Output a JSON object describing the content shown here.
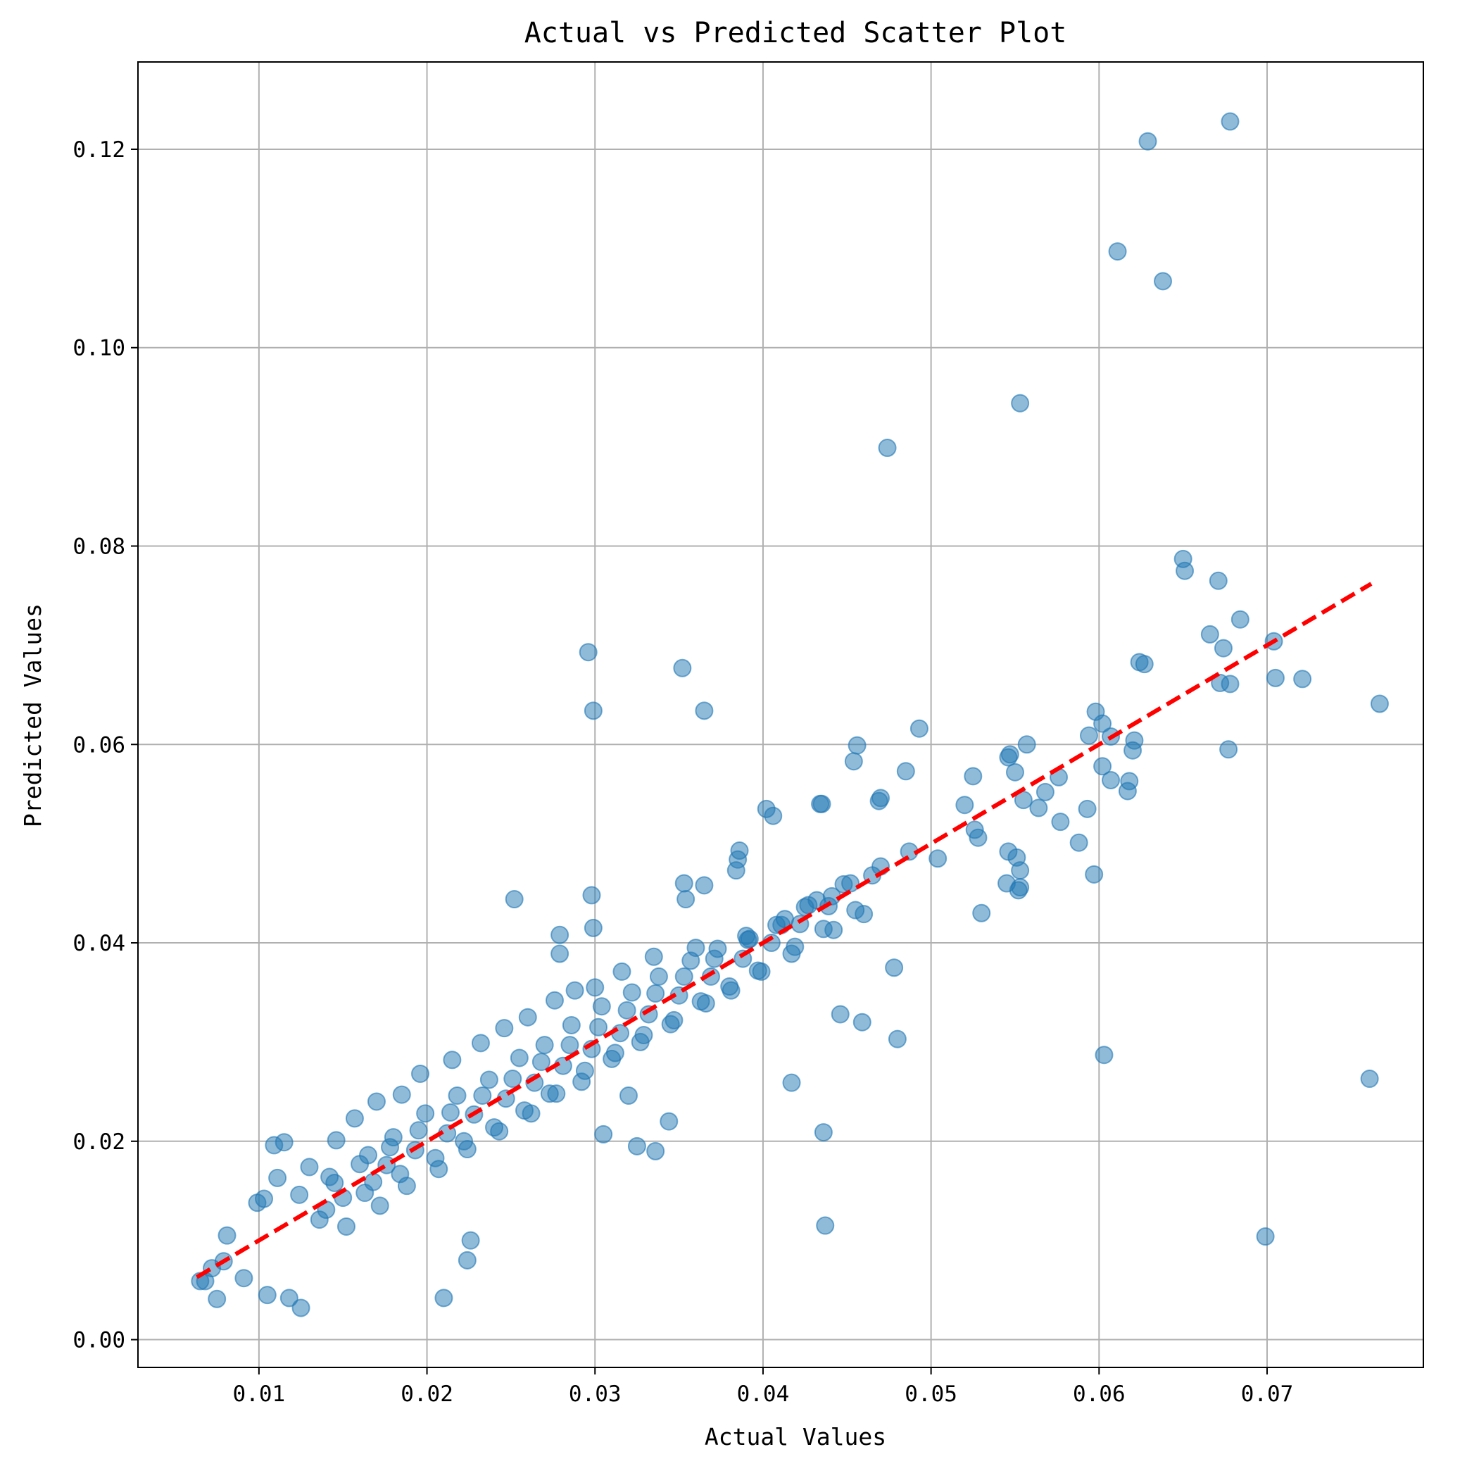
{
  "chart_data": {
    "type": "scatter",
    "title": "Actual vs Predicted Scatter Plot",
    "xlabel": "Actual Values",
    "ylabel": "Predicted Values",
    "xlim": [
      0.0028,
      0.0793
    ],
    "ylim": [
      -0.0028,
      0.1288
    ],
    "xticks": [
      0.01,
      0.02,
      0.03,
      0.04,
      0.05,
      0.06,
      0.07
    ],
    "xtick_labels": [
      "0.01",
      "0.02",
      "0.03",
      "0.04",
      "0.05",
      "0.06",
      "0.07"
    ],
    "yticks": [
      0.0,
      0.02,
      0.04,
      0.06,
      0.08,
      0.1,
      0.12
    ],
    "ytick_labels": [
      "0.00",
      "0.02",
      "0.04",
      "0.06",
      "0.08",
      "0.10",
      "0.12"
    ],
    "grid": true,
    "legend": "none",
    "colors": {
      "points": "#1f77b4",
      "reference_line": "#ff0000"
    },
    "reference_line": {
      "style": "dashed",
      "x": [
        0.0063,
        0.0762
      ],
      "y": [
        0.0063,
        0.0762
      ]
    },
    "points": {
      "x": [
        0.0629,
        0.0678,
        0.0611,
        0.0638,
        0.0553,
        0.0474,
        0.065,
        0.0651,
        0.0671,
        0.0684,
        0.0704,
        0.0705,
        0.0721,
        0.0767,
        0.0666,
        0.0674,
        0.0678,
        0.0672,
        0.0677,
        0.0624,
        0.0627,
        0.0598,
        0.0602,
        0.0607,
        0.0594,
        0.0621,
        0.062,
        0.0618,
        0.0602,
        0.0617,
        0.0607,
        0.0588,
        0.0597,
        0.0593,
        0.0577,
        0.0555,
        0.0564,
        0.0576,
        0.0568,
        0.055,
        0.0546,
        0.0547,
        0.0557,
        0.0525,
        0.0526,
        0.052,
        0.0528,
        0.0504,
        0.0545,
        0.0553,
        0.0552,
        0.0553,
        0.0546,
        0.0551,
        0.053,
        0.0296,
        0.0352,
        0.0299,
        0.0365,
        0.0456,
        0.0454,
        0.0493,
        0.0485,
        0.0469,
        0.047,
        0.0434,
        0.0435,
        0.0402,
        0.0406,
        0.0386,
        0.0385,
        0.0384,
        0.0353,
        0.0365,
        0.0354,
        0.0298,
        0.0252,
        0.0299,
        0.0279,
        0.0279,
        0.0603,
        0.0761,
        0.0699,
        0.0437,
        0.0436,
        0.0417,
        0.0336,
        0.0325,
        0.0305,
        0.0344,
        0.032,
        0.048,
        0.0459,
        0.0446,
        0.0478,
        0.021,
        0.0224,
        0.0226,
        0.0125,
        0.0118,
        0.0105,
        0.0075,
        0.0091,
        0.0068,
        0.0065,
        0.0072,
        0.0079,
        0.0081,
        0.0099,
        0.0111,
        0.0109,
        0.0115,
        0.0103,
        0.013,
        0.0146,
        0.0157,
        0.017,
        0.0185,
        0.0196,
        0.0215,
        0.0232,
        0.0246,
        0.026,
        0.0276,
        0.0288,
        0.03,
        0.0316,
        0.0335,
        0.036,
        0.0392,
        0.0411,
        0.0425,
        0.0441,
        0.0465,
        0.0152,
        0.0172,
        0.0188,
        0.0207,
        0.0224,
        0.0243,
        0.0262,
        0.0277,
        0.0292,
        0.031,
        0.0327,
        0.0345,
        0.0366,
        0.0381,
        0.0399,
        0.0417,
        0.0442,
        0.046,
        0.0142,
        0.0165,
        0.018,
        0.0199,
        0.0218,
        0.0237,
        0.0255,
        0.027,
        0.0286,
        0.0304,
        0.0322,
        0.0338,
        0.0357,
        0.0373,
        0.039,
        0.0408,
        0.0427,
        0.0448,
        0.014,
        0.0163,
        0.0184,
        0.0205,
        0.0222,
        0.024,
        0.0258,
        0.0273,
        0.0294,
        0.0312,
        0.0329,
        0.0347,
        0.0363,
        0.038,
        0.0397,
        0.0419,
        0.0436,
        0.0455,
        0.0124,
        0.0136,
        0.015,
        0.0168,
        0.0176,
        0.0193,
        0.0212,
        0.0228,
        0.0247,
        0.0264,
        0.0281,
        0.0298,
        0.0315,
        0.0332,
        0.035,
        0.0369,
        0.0388,
        0.0405,
        0.0422,
        0.0439,
        0.0145,
        0.016,
        0.0178,
        0.0195,
        0.0214,
        0.0233,
        0.0251,
        0.0268,
        0.0285,
        0.0302,
        0.0319,
        0.0336,
        0.0353,
        0.0371,
        0.0391,
        0.0413,
        0.0432,
        0.0452,
        0.047,
        0.0487
      ],
      "y": [
        0.1208,
        0.1228,
        0.1097,
        0.1067,
        0.0944,
        0.0899,
        0.0787,
        0.0775,
        0.0765,
        0.0726,
        0.0704,
        0.0667,
        0.0666,
        0.0641,
        0.0711,
        0.0697,
        0.0661,
        0.0662,
        0.0595,
        0.0683,
        0.0681,
        0.0633,
        0.0621,
        0.0608,
        0.0609,
        0.0604,
        0.0594,
        0.0563,
        0.0578,
        0.0553,
        0.0564,
        0.0501,
        0.0469,
        0.0535,
        0.0522,
        0.0544,
        0.0536,
        0.0567,
        0.0552,
        0.0572,
        0.0587,
        0.059,
        0.06,
        0.0568,
        0.0514,
        0.0539,
        0.0506,
        0.0485,
        0.046,
        0.0456,
        0.0453,
        0.0473,
        0.0492,
        0.0486,
        0.043,
        0.0693,
        0.0677,
        0.0634,
        0.0634,
        0.0599,
        0.0583,
        0.0616,
        0.0573,
        0.0543,
        0.0546,
        0.054,
        0.054,
        0.0535,
        0.0528,
        0.0493,
        0.0484,
        0.0473,
        0.046,
        0.0458,
        0.0444,
        0.0448,
        0.0444,
        0.0415,
        0.0408,
        0.0389,
        0.0287,
        0.0263,
        0.0104,
        0.0115,
        0.0209,
        0.0259,
        0.019,
        0.0195,
        0.0207,
        0.022,
        0.0246,
        0.0303,
        0.032,
        0.0328,
        0.0375,
        0.0042,
        0.008,
        0.01,
        0.0032,
        0.0042,
        0.0045,
        0.0041,
        0.0062,
        0.0059,
        0.0059,
        0.0072,
        0.0079,
        0.0105,
        0.0138,
        0.0163,
        0.0196,
        0.0199,
        0.0142,
        0.0174,
        0.0201,
        0.0223,
        0.024,
        0.0247,
        0.0268,
        0.0282,
        0.0299,
        0.0314,
        0.0325,
        0.0342,
        0.0352,
        0.0355,
        0.0371,
        0.0386,
        0.0395,
        0.0404,
        0.0418,
        0.0436,
        0.0447,
        0.0468,
        0.0114,
        0.0135,
        0.0155,
        0.0172,
        0.0192,
        0.021,
        0.0228,
        0.0248,
        0.026,
        0.0283,
        0.03,
        0.0318,
        0.0339,
        0.0352,
        0.0371,
        0.0389,
        0.0413,
        0.0429,
        0.0164,
        0.0186,
        0.0204,
        0.0228,
        0.0246,
        0.0262,
        0.0284,
        0.0297,
        0.0317,
        0.0336,
        0.035,
        0.0366,
        0.0382,
        0.0394,
        0.0407,
        0.0418,
        0.0438,
        0.0459,
        0.0131,
        0.0148,
        0.0167,
        0.0183,
        0.02,
        0.0214,
        0.0231,
        0.0248,
        0.0271,
        0.0289,
        0.0307,
        0.0322,
        0.0341,
        0.0356,
        0.0372,
        0.0396,
        0.0414,
        0.0433,
        0.0146,
        0.0121,
        0.0143,
        0.0159,
        0.0176,
        0.0191,
        0.0208,
        0.0227,
        0.0243,
        0.0259,
        0.0276,
        0.0293,
        0.0309,
        0.0328,
        0.0347,
        0.0366,
        0.0384,
        0.04,
        0.0419,
        0.0437,
        0.0158,
        0.0177,
        0.0194,
        0.0211,
        0.0229,
        0.0246,
        0.0263,
        0.028,
        0.0297,
        0.0315,
        0.0332,
        0.0349,
        0.0366,
        0.0384,
        0.0403,
        0.0424,
        0.0443,
        0.046,
        0.0477,
        0.0492
      ]
    }
  }
}
